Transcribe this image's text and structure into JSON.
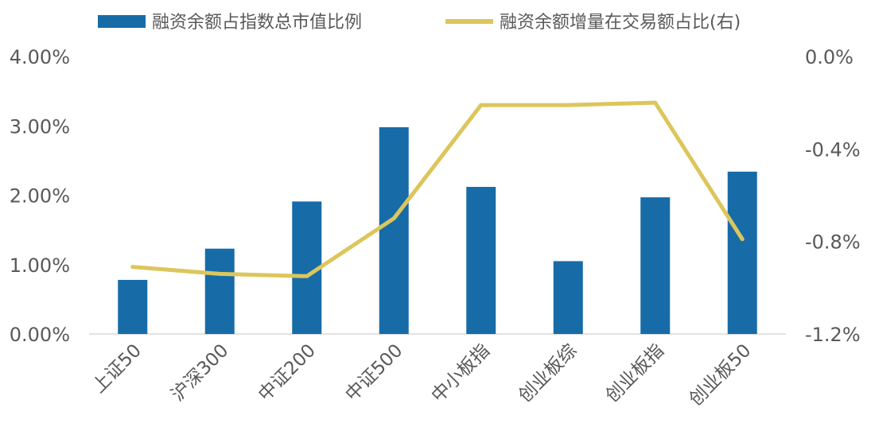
{
  "chart_data": {
    "type": "bar+line",
    "title": "",
    "categories": [
      "上证50",
      "沪深300",
      "中证200",
      "中证500",
      "中小板指",
      "创业板综",
      "创业板指",
      "创业板50"
    ],
    "series": [
      {
        "name": "融资余额占指数总市值比例",
        "type": "bar",
        "axis": "left",
        "color": "#176ca8",
        "values": [
          0.78,
          1.23,
          1.91,
          2.98,
          2.12,
          1.05,
          1.97,
          2.34
        ]
      },
      {
        "name": "融资余额增量在交易额占比(右)",
        "type": "line",
        "axis": "right",
        "color": "#dcc65c",
        "values": [
          -0.91,
          -0.94,
          -0.95,
          -0.7,
          -0.21,
          -0.21,
          -0.2,
          -0.79
        ]
      }
    ],
    "y_left": {
      "ylim": [
        0,
        4
      ],
      "ticks": [
        0,
        1,
        2,
        3,
        4
      ],
      "tick_labels": [
        "0.00%",
        "1.00%",
        "2.00%",
        "3.00%",
        "4.00%"
      ]
    },
    "y_right": {
      "ylim": [
        -1.2,
        0
      ],
      "ticks": [
        -1.2,
        -0.8,
        -0.4,
        0
      ],
      "tick_labels": [
        "-1.2%",
        "-0.8%",
        "-0.4%",
        "0.0%"
      ]
    },
    "legend_position": "top",
    "grid": false
  }
}
